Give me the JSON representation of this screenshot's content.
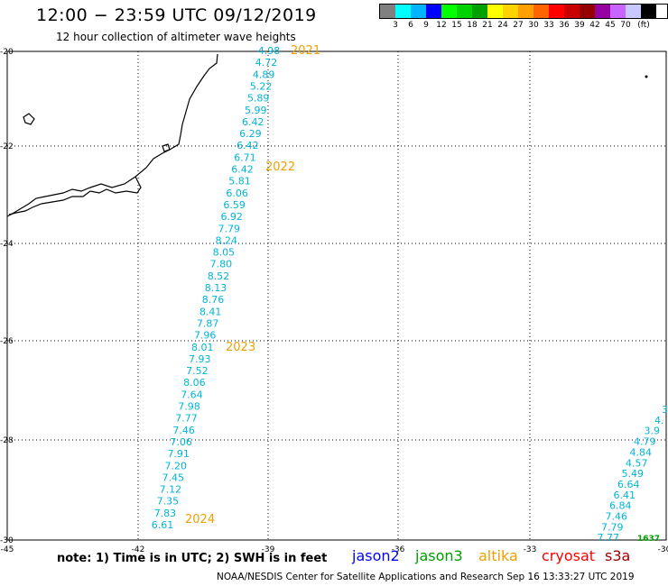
{
  "header": {
    "title": "12:00 − 23:59 UTC 09/12/2019",
    "subtitle": "12 hour collection of altimeter wave heights"
  },
  "color_scale": {
    "colors": [
      "#808080",
      "#00ffff",
      "#00b4ff",
      "#0000ff",
      "#00ff00",
      "#00d200",
      "#00a000",
      "#ffff00",
      "#ffd200",
      "#ffa000",
      "#ff6400",
      "#ff0000",
      "#c80000",
      "#960000",
      "#9600a0",
      "#c864ff",
      "#c8c8ff",
      "#000000"
    ],
    "labels": [
      "3",
      "6",
      "9",
      "12",
      "15",
      "18",
      "21",
      "24",
      "27",
      "30",
      "33",
      "36",
      "39",
      "42",
      "45",
      "70",
      "(ft)"
    ]
  },
  "map": {
    "lon_ticks": [
      "-45",
      "-42",
      "-39",
      "-36",
      "-33",
      "-30"
    ],
    "lat_ticks": [
      "-20",
      "-22",
      "-24",
      "-26",
      "-28",
      "-30"
    ],
    "track_color": "#00b4d8",
    "hour_color": "#f0a000",
    "track1": [
      "4.98",
      "4.72",
      "4.89",
      "5.22",
      "5.89",
      "5.99",
      "6.42",
      "6.29",
      "6.42",
      "6.71",
      "6.42",
      "5.81",
      "6.06",
      "6.59",
      "6.92",
      "7.79",
      "8.24",
      "8.05",
      "7.80",
      "8.52",
      "8.13",
      "8.76",
      "8.41",
      "7.87",
      "7.96",
      "8.01",
      "7.93",
      "7.52",
      "8.06",
      "7.64",
      "7.98",
      "7.77",
      "7.46",
      "7.06",
      "7.91",
      "7.20",
      "7.45",
      "7.12",
      "7.35",
      "7.83",
      "6.61"
    ],
    "track2": [
      "3",
      "4.",
      "3.9",
      "4.79",
      "4.84",
      "4.57",
      "5.49",
      "6.64",
      "6.41",
      "6.84",
      "7.46",
      "7.79",
      "7.77"
    ],
    "hour_labels": [
      "2021",
      "2022",
      "2023",
      "2024"
    ],
    "corner_label": "1637"
  },
  "note": "note:  1) Time is in UTC;  2) SWH is in feet",
  "legend": [
    {
      "name": "jason2",
      "color": "#0000ff"
    },
    {
      "name": "jason3",
      "color": "#00a000"
    },
    {
      "name": "altika",
      "color": "#f0a000"
    },
    {
      "name": "cryosat",
      "color": "#ff0000"
    },
    {
      "name": "s3a",
      "color": "#a00000"
    }
  ],
  "footer": "NOAA/NESDIS Center for Satellite Applications and Research     Sep 16 13:33:27 UTC 2019"
}
